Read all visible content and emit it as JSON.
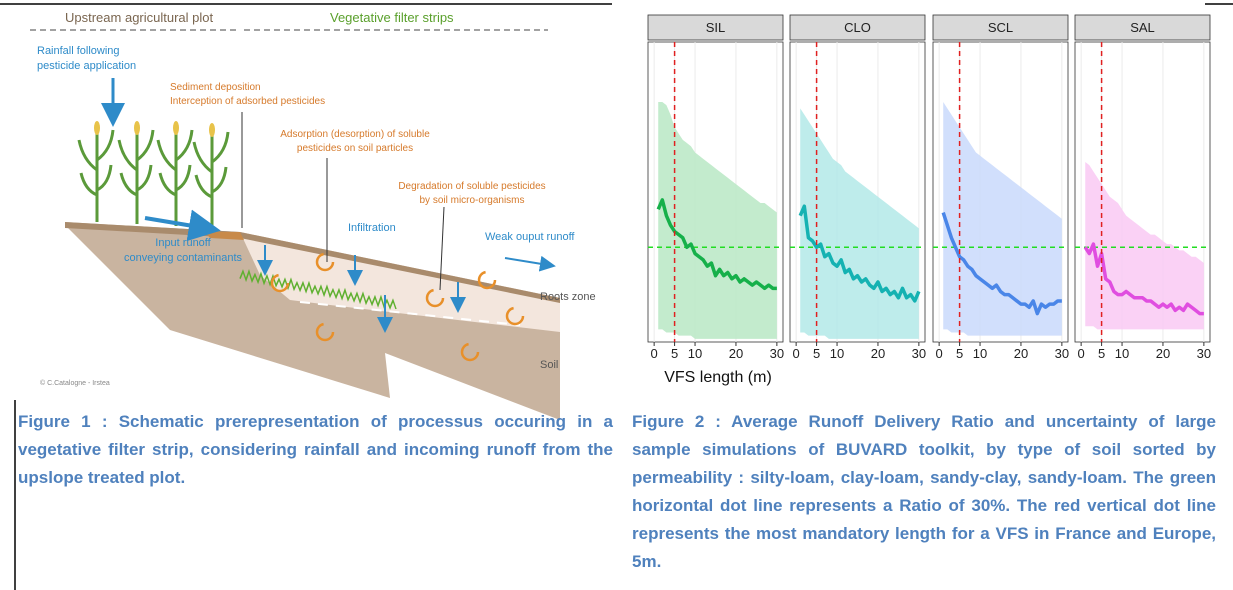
{
  "figure1": {
    "header_left": "Upstream agricultural plot",
    "header_right": "Vegetative filter strips",
    "rainfall": [
      "Rainfall following",
      "pesticide application"
    ],
    "sediment": [
      "Sediment deposition",
      "Interception of adsorbed pesticides"
    ],
    "adsorption": [
      "Adsorption (desorption) of soluble",
      "pesticides on soil particles"
    ],
    "degradation": [
      "Degradation of soluble pesticides",
      "by soil micro-organisms"
    ],
    "infiltration": "Infiltration",
    "output": "Weak ouput runoff",
    "input": [
      "Input runoff",
      "conveying contaminants"
    ],
    "roots": "Roots zone",
    "soil": "Soil",
    "credit": "© C.Catalogne - Irstea"
  },
  "figure1_caption": "Figure 1 : Schematic prerepresentation of processus occuring in a vegetative filter strip, considering rainfall and incoming runoff from the upslope treated plot.",
  "chart_data": {
    "type": "line",
    "x_label": "VFS length (m)",
    "x": [
      1,
      2,
      3,
      4,
      5,
      6,
      7,
      8,
      9,
      10,
      11,
      12,
      13,
      14,
      15,
      16,
      17,
      18,
      19,
      20,
      21,
      22,
      23,
      24,
      25,
      26,
      27,
      28,
      29,
      30
    ],
    "xlim": [
      -1.5,
      31.5
    ],
    "xticks": [
      0,
      5,
      10,
      20,
      30
    ],
    "ylim": [
      0,
      95
    ],
    "grid": true,
    "hline": {
      "value": 30,
      "color": "#22dd22"
    },
    "vline": {
      "value": 5,
      "color": "#e02020"
    },
    "panels": [
      {
        "name": "SIL",
        "color": "#16b04a",
        "fill": "#b9e8c4",
        "values": [
          42,
          45,
          40,
          37,
          35,
          34,
          33,
          30,
          31,
          28,
          27,
          26,
          24,
          25,
          21,
          23,
          21,
          22,
          20,
          21,
          19,
          20,
          19,
          18,
          19,
          18,
          17,
          18,
          17,
          17
        ],
        "upper": [
          76,
          76,
          75,
          72,
          68,
          66,
          64,
          63,
          62,
          60,
          59,
          58,
          57,
          56,
          55,
          54,
          53,
          52,
          51,
          50,
          49,
          48,
          47,
          46,
          45,
          44,
          44,
          43,
          42,
          41
        ],
        "lower": [
          4,
          4,
          3,
          3,
          3,
          2,
          2,
          2,
          2,
          1,
          1,
          1,
          1,
          1,
          1,
          1,
          1,
          1,
          1,
          1,
          1,
          1,
          1,
          1,
          1,
          1,
          1,
          1,
          1,
          1
        ]
      },
      {
        "name": "CLO",
        "color": "#15b2b2",
        "fill": "#b3e9e8",
        "values": [
          40,
          43,
          33,
          32,
          30,
          31,
          27,
          28,
          25,
          24,
          26,
          22,
          23,
          20,
          21,
          19,
          20,
          18,
          17,
          19,
          16,
          17,
          15,
          16,
          14,
          17,
          14,
          15,
          13,
          16
        ],
        "upper": [
          74,
          72,
          70,
          68,
          66,
          64,
          62,
          60,
          58,
          57,
          56,
          54,
          53,
          52,
          51,
          50,
          49,
          48,
          47,
          46,
          45,
          44,
          43,
          42,
          41,
          40,
          39,
          38,
          37,
          36
        ],
        "lower": [
          3,
          3,
          2,
          2,
          2,
          2,
          2,
          1,
          1,
          1,
          1,
          1,
          1,
          1,
          1,
          1,
          1,
          1,
          1,
          1,
          1,
          1,
          1,
          1,
          1,
          1,
          1,
          1,
          1,
          1
        ]
      },
      {
        "name": "SCL",
        "color": "#4a86e8",
        "fill": "#c9d9fb",
        "values": [
          41,
          37,
          33,
          30,
          27,
          26,
          24,
          23,
          21,
          20,
          19,
          18,
          17,
          18,
          16,
          15,
          15,
          14,
          13,
          12,
          12,
          11,
          13,
          9,
          12,
          11,
          12,
          12,
          13,
          13
        ],
        "upper": [
          76,
          74,
          72,
          70,
          68,
          66,
          64,
          62,
          60,
          59,
          58,
          57,
          56,
          55,
          54,
          53,
          52,
          51,
          50,
          49,
          48,
          47,
          46,
          45,
          44,
          43,
          42,
          41,
          40,
          39
        ],
        "lower": [
          4,
          4,
          3,
          3,
          3,
          3,
          2,
          2,
          2,
          2,
          2,
          2,
          2,
          2,
          2,
          2,
          2,
          2,
          2,
          2,
          2,
          2,
          2,
          2,
          2,
          2,
          2,
          2,
          2,
          2
        ]
      },
      {
        "name": "SAL",
        "color": "#e04ee0",
        "fill": "#f9c9f3",
        "values": [
          30,
          28,
          31,
          24,
          28,
          20,
          19,
          16,
          15,
          15,
          16,
          15,
          14,
          14,
          14,
          13,
          13,
          12,
          11,
          12,
          11,
          12,
          10,
          11,
          10,
          12,
          11,
          10,
          9,
          9
        ],
        "upper": [
          57,
          56,
          54,
          52,
          50,
          48,
          46,
          45,
          44,
          42,
          40,
          39,
          38,
          37,
          36,
          35,
          34,
          34,
          33,
          32,
          31,
          31,
          30,
          29,
          29,
          28,
          27,
          27,
          26,
          25
        ],
        "lower": [
          5,
          5,
          5,
          4,
          4,
          4,
          4,
          4,
          4,
          4,
          4,
          4,
          4,
          4,
          4,
          4,
          4,
          4,
          4,
          4,
          4,
          4,
          4,
          4,
          4,
          4,
          4,
          4,
          4,
          4
        ]
      }
    ]
  },
  "figure2_caption": "Figure 2 : Average Runoff Delivery Ratio and uncertainty of large sample simulations of BUVARD toolkit, by type of soil sorted by permeability : silty-loam, clay-loam, sandy-clay, sandy-loam. The green horizontal dot line represents a Ratio of 30%. The red vertical dot line represents the most mandatory length for a VFS in France and Europe, 5m."
}
